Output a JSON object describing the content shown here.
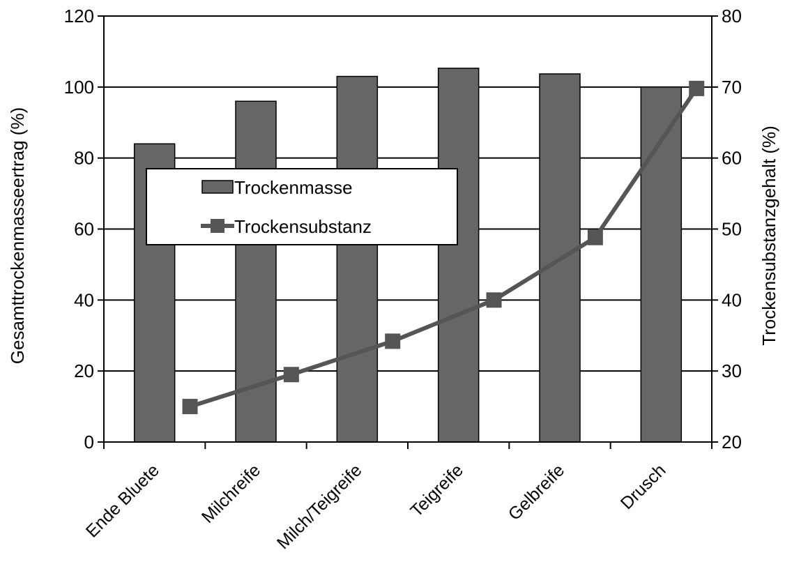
{
  "chart_data": {
    "type": "bar",
    "title": "",
    "categories": [
      "Ende Bluete",
      "Milchreife",
      "Milch/Teigreife",
      "Teigreife",
      "Gelbreife",
      "Drusch"
    ],
    "y_left": {
      "label": "Gesamttrockenmasseertrag (%)",
      "lim": [
        0,
        120
      ],
      "ticks": [
        0,
        20,
        40,
        60,
        80,
        100,
        120
      ]
    },
    "y_right": {
      "label": "Trockensubstanzgehalt (%)",
      "lim": [
        20,
        80
      ],
      "ticks": [
        20,
        30,
        40,
        50,
        60,
        70,
        80
      ]
    },
    "series": [
      {
        "name": "Trockenmasse",
        "type": "bar",
        "axis": "left",
        "color": "#666666",
        "values": [
          84,
          96,
          103,
          105.3,
          103.7,
          100
        ]
      },
      {
        "name": "Trockensubstanz",
        "type": "line",
        "axis": "right",
        "color": "#555555",
        "marker": "square",
        "values": [
          25,
          29.5,
          34.2,
          40,
          48.8,
          69.8
        ]
      }
    ],
    "grid": true,
    "legend": {
      "position": "upper-left"
    }
  }
}
